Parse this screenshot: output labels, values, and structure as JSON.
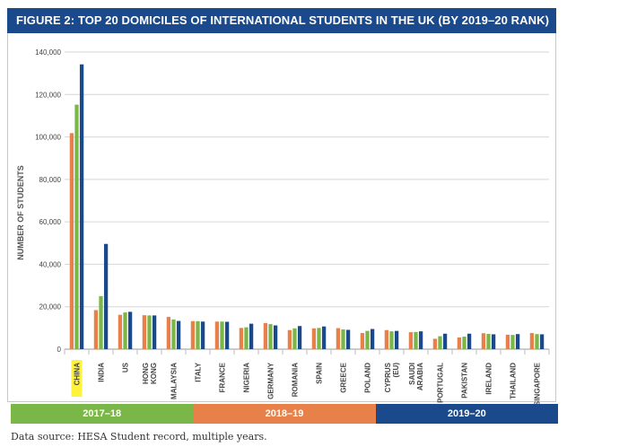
{
  "title": "FIGURE 2: TOP 20 DOMICILES OF INTERNATIONAL STUDENTS IN THE UK (BY 2019–20 RANK)",
  "source": "Data source: HESA Student record, multiple years.",
  "colors": {
    "title_bg": "#1b4a8c",
    "highlight": "#fff23a",
    "series": [
      "#e8804a",
      "#7ab648",
      "#1b4a8c"
    ]
  },
  "legend": [
    {
      "label": "2017–18",
      "color": "#7ab648"
    },
    {
      "label": "2018–19",
      "color": "#e8804a"
    },
    {
      "label": "2019–20",
      "color": "#1b4a8c"
    }
  ],
  "chart_data": {
    "type": "bar",
    "title": "FIGURE 2: TOP 20 DOMICILES OF INTERNATIONAL STUDENTS IN THE UK (BY 2019–20 RANK)",
    "ylabel": "NUMBER OF STUDENTS",
    "xlabel": "",
    "ylim": [
      0,
      140000
    ],
    "yticks": [
      "0",
      "20,000",
      "40,000",
      "60,000",
      "80,000",
      "100,000",
      "120,000",
      "140,000"
    ],
    "grid": true,
    "legend_position": "bottom",
    "categories": [
      "CHINA",
      "INDIA",
      "US",
      "HONG KONG",
      "MALAYSIA",
      "ITALY",
      "FRANCE",
      "NIGERIA",
      "GERMANY",
      "ROMANIA",
      "SPAIN",
      "GREECE",
      "POLAND",
      "CYPRUS (EU)",
      "SAUDI ARABIA",
      "PORTUGAL",
      "PAKISTAN",
      "IRELAND",
      "THAILAND",
      "SINGAPORE"
    ],
    "highlight_category": "CHINA",
    "series": [
      {
        "values": [
          101800,
          18400,
          16200,
          16000,
          15200,
          13200,
          13000,
          10000,
          12300,
          9000,
          9800,
          9900,
          7600,
          9000,
          8000,
          4900,
          5500,
          7500,
          6800,
          7600
        ]
      },
      {
        "values": [
          115200,
          25000,
          17300,
          15900,
          14000,
          13200,
          13000,
          10300,
          11800,
          9800,
          10000,
          9300,
          8600,
          8400,
          8100,
          6100,
          5900,
          7200,
          6700,
          7100
        ]
      },
      {
        "values": [
          134200,
          49600,
          17600,
          15900,
          13300,
          13000,
          12900,
          12000,
          11200,
          10900,
          10700,
          9100,
          9500,
          8600,
          8400,
          7300,
          7300,
          7000,
          7100,
          7000
        ]
      }
    ]
  }
}
